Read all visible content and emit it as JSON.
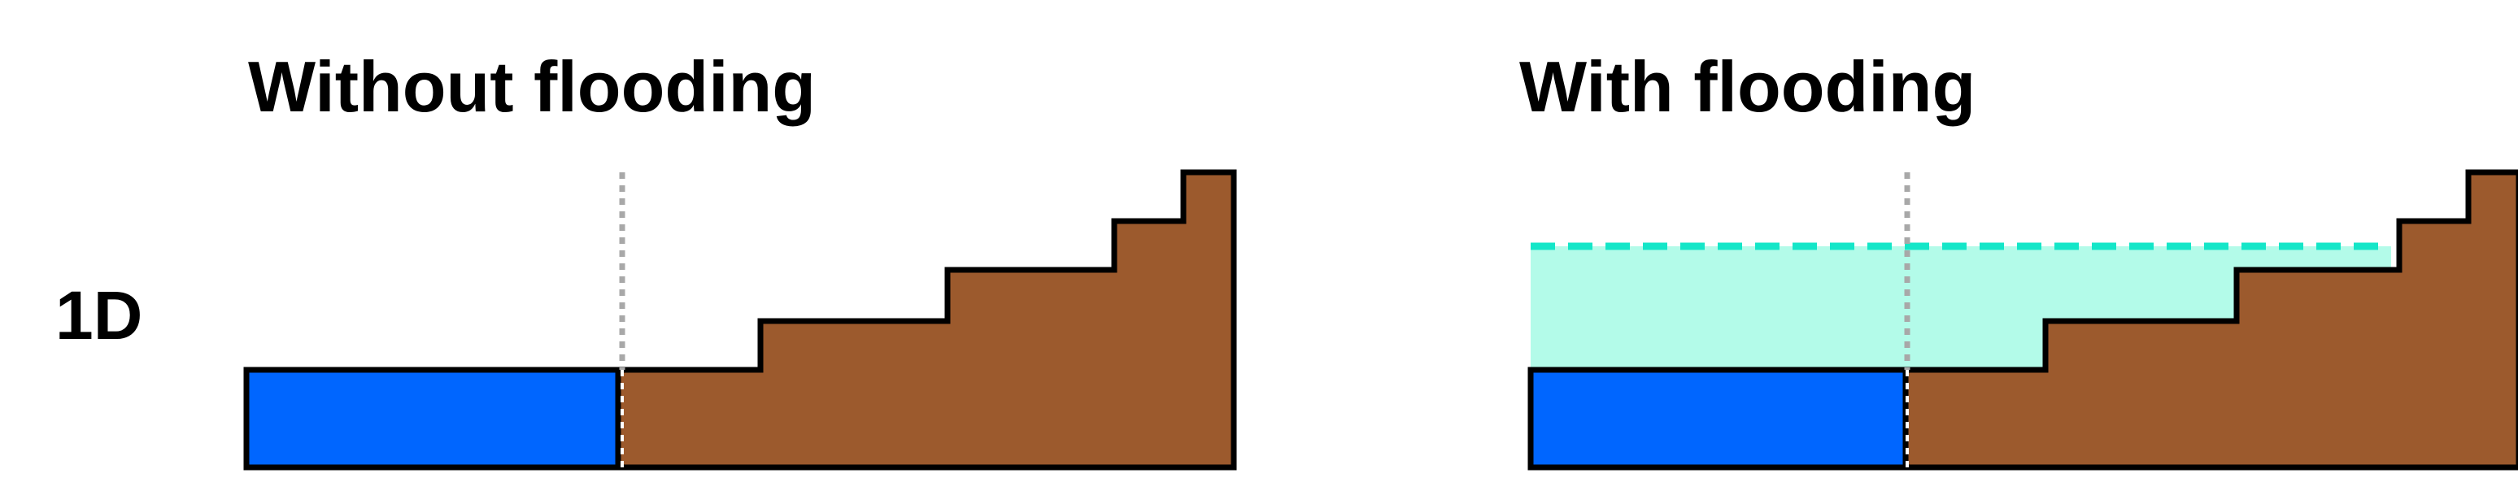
{
  "row_label": "1D",
  "panels": [
    {
      "title": "Without flooding",
      "flooded": false
    },
    {
      "title": "With flooding",
      "flooded": true
    }
  ],
  "colors": {
    "sea": "#0066ff",
    "terrain": "#9c5a2d",
    "flood_fill": "#b3fbe9",
    "flood_line": "#14e6c8",
    "divider": "#a8a8a8",
    "outline": "#000000"
  }
}
